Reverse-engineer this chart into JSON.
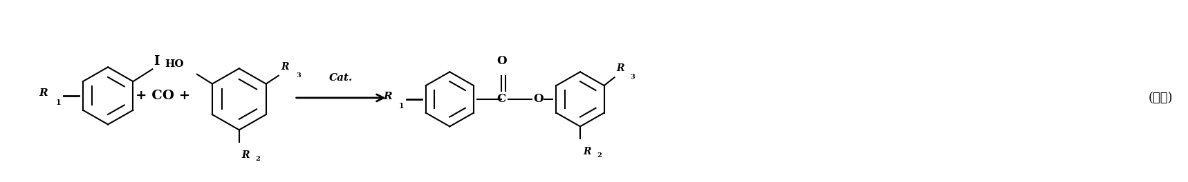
{
  "bg_color": "#ffffff",
  "line_color": "#000000",
  "text_color": "#000000",
  "figsize": [
    17.18,
    2.64
  ],
  "dpi": 100,
  "label_式二": "(式二)",
  "label_cat": "Cat.",
  "label_CO": "+ CO +",
  "label_plus1": "+",
  "label_O": "O",
  "label_C": "C",
  "label_O2": "O",
  "label_HO": "HO",
  "label_I": "I",
  "label_R1a": "R",
  "label_R1b": "1",
  "label_R2a": "R",
  "label_R2b": "2",
  "label_R3a": "R",
  "label_R3b": "3",
  "label_R1c": "R",
  "label_R1d": "1",
  "label_R2c": "R",
  "label_R2d": "2",
  "label_R3c": "R",
  "label_R3d": "3"
}
